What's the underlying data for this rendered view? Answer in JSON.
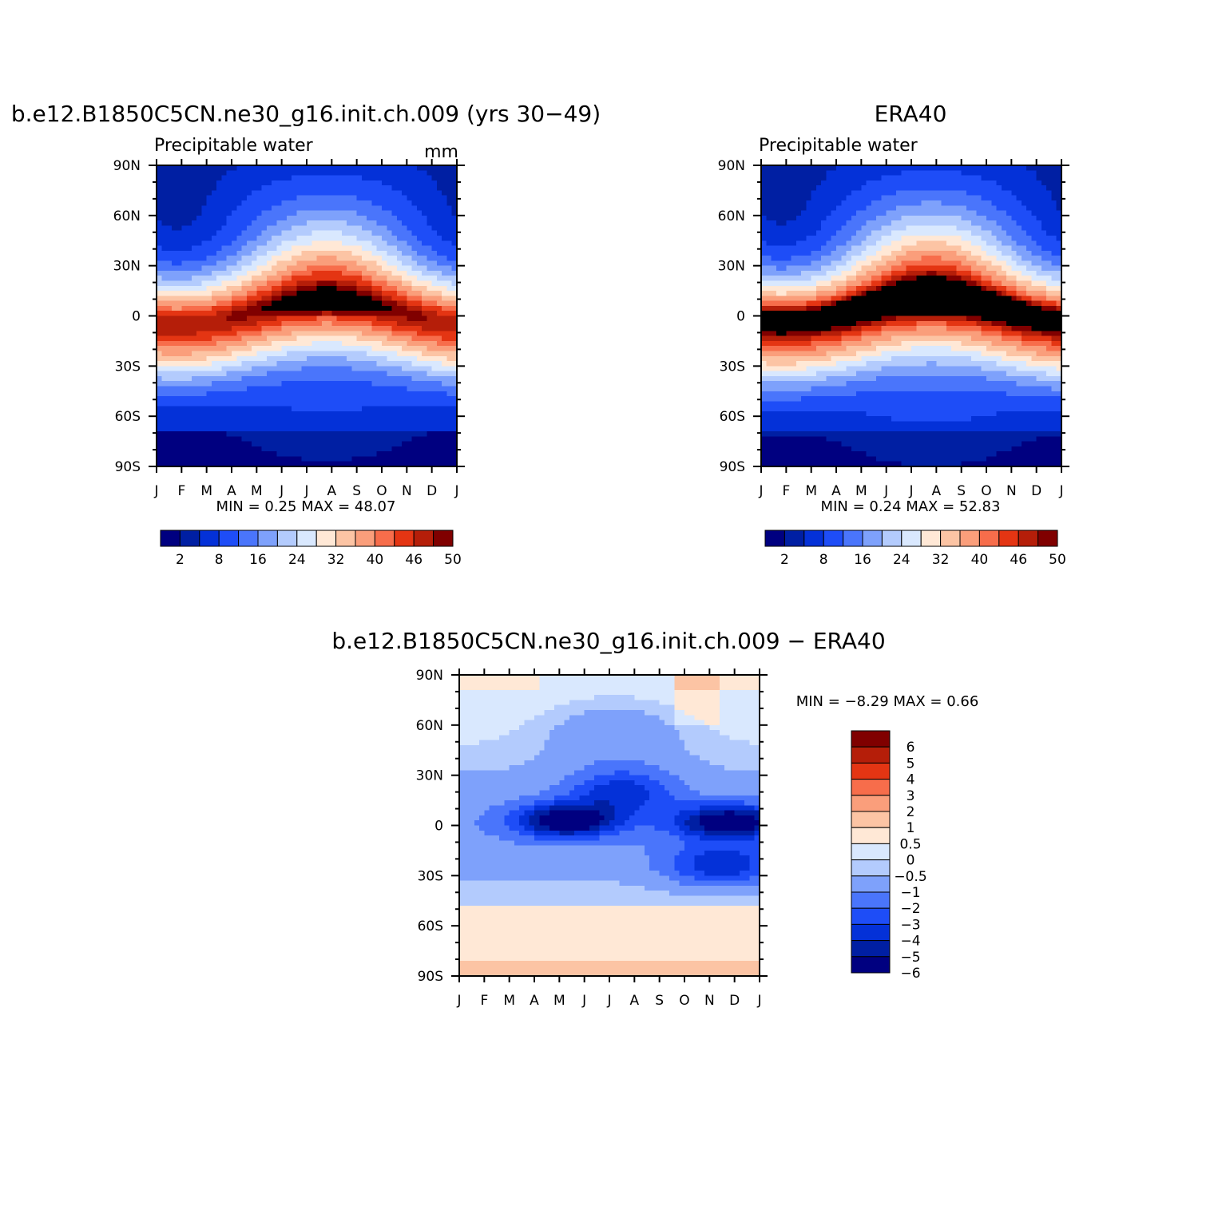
{
  "palettes": {
    "precip": [
      "#000080",
      "#001fa3",
      "#0431d8",
      "#1e4df7",
      "#4a75fb",
      "#7ea1fb",
      "#b3cbfd",
      "#d9e8fe",
      "#ffe8d6",
      "#fcc4a4",
      "#fa9e7b",
      "#f76d4b",
      "#e43513",
      "#b51e09",
      "#800000"
    ],
    "diff": [
      "#000080",
      "#001fa3",
      "#0431d8",
      "#1e4df7",
      "#4a75fb",
      "#7ea1fb",
      "#b3cbfd",
      "#d9e8fe",
      "#ffe8d6",
      "#fcc4a4",
      "#fa9e7b",
      "#f76d4b",
      "#e43513",
      "#b51e09",
      "#800000"
    ]
  },
  "chart_data": [
    {
      "type": "heatmap",
      "title": "b.e12.B1850C5CN.ne30_g16.init.ch.009 (yrs 30−49)",
      "subtitle_left": "Precipitable water",
      "subtitle_right": "mm",
      "x_ticklabels": [
        "J",
        "F",
        "M",
        "A",
        "M",
        "J",
        "J",
        "A",
        "S",
        "O",
        "N",
        "D",
        "J"
      ],
      "y_ticklabels": [
        "90N",
        "60N",
        "30N",
        "0",
        "30S",
        "60S",
        "90S"
      ],
      "xlim": [
        0,
        12
      ],
      "ylim": [
        -90,
        90
      ],
      "stats": {
        "min_label": "MIN =",
        "min": "0.25",
        "max_label": "MAX =",
        "max": "48.07"
      },
      "field": {
        "kind": "model",
        "peak": 48.07,
        "minval": 0.25
      },
      "colorbar": {
        "levels": [
          2,
          5,
          8,
          12,
          16,
          20,
          24,
          28,
          32,
          36,
          40,
          43,
          46,
          48,
          50
        ],
        "labels": [
          "2",
          "8",
          "16",
          "24",
          "32",
          "40",
          "46",
          "50"
        ],
        "label_level_index": [
          0,
          2,
          4,
          6,
          8,
          10,
          12,
          14
        ]
      }
    },
    {
      "type": "heatmap",
      "title": "ERA40",
      "subtitle_left": "Precipitable water",
      "subtitle_right": "",
      "x_ticklabels": [
        "J",
        "F",
        "M",
        "A",
        "M",
        "J",
        "J",
        "A",
        "S",
        "O",
        "N",
        "D",
        "J"
      ],
      "y_ticklabels": [
        "90N",
        "60N",
        "30N",
        "0",
        "30S",
        "60S",
        "90S"
      ],
      "xlim": [
        0,
        12
      ],
      "ylim": [
        -90,
        90
      ],
      "stats": {
        "min_label": "MIN =",
        "min": "0.24",
        "max_label": "MAX =",
        "max": "52.83"
      },
      "field": {
        "kind": "obs",
        "peak": 52.83,
        "minval": 0.24
      },
      "colorbar": {
        "levels": [
          2,
          5,
          8,
          12,
          16,
          20,
          24,
          28,
          32,
          36,
          40,
          43,
          46,
          48,
          50
        ],
        "labels": [
          "2",
          "8",
          "16",
          "24",
          "32",
          "40",
          "46",
          "50"
        ],
        "label_level_index": [
          0,
          2,
          4,
          6,
          8,
          10,
          12,
          14
        ]
      }
    },
    {
      "type": "heatmap",
      "title": "b.e12.B1850C5CN.ne30_g16.init.ch.009 − ERA40",
      "x_ticklabels": [
        "J",
        "F",
        "M",
        "A",
        "M",
        "J",
        "J",
        "A",
        "S",
        "O",
        "N",
        "D",
        "J"
      ],
      "y_ticklabels": [
        "90N",
        "60N",
        "30N",
        "0",
        "30S",
        "60S",
        "90S"
      ],
      "xlim": [
        0,
        12
      ],
      "ylim": [
        -90,
        90
      ],
      "stats": {
        "min_label": "MIN =",
        "min": "−8.29",
        "max_label": "MAX =",
        "max": "0.66"
      },
      "field": {
        "kind": "diff",
        "minval": -8.29,
        "peak": 0.66
      },
      "colorbar": {
        "levels": [
          -6,
          -5,
          -4,
          -3,
          -2,
          -1,
          -0.5,
          0,
          0.5,
          1,
          2,
          3,
          4,
          5,
          6
        ],
        "labels": [
          "−6",
          "−5",
          "−4",
          "−3",
          "−2",
          "−1",
          "−0.5",
          "0",
          "0.5",
          "1",
          "2",
          "3",
          "4",
          "5",
          "6"
        ]
      }
    }
  ]
}
